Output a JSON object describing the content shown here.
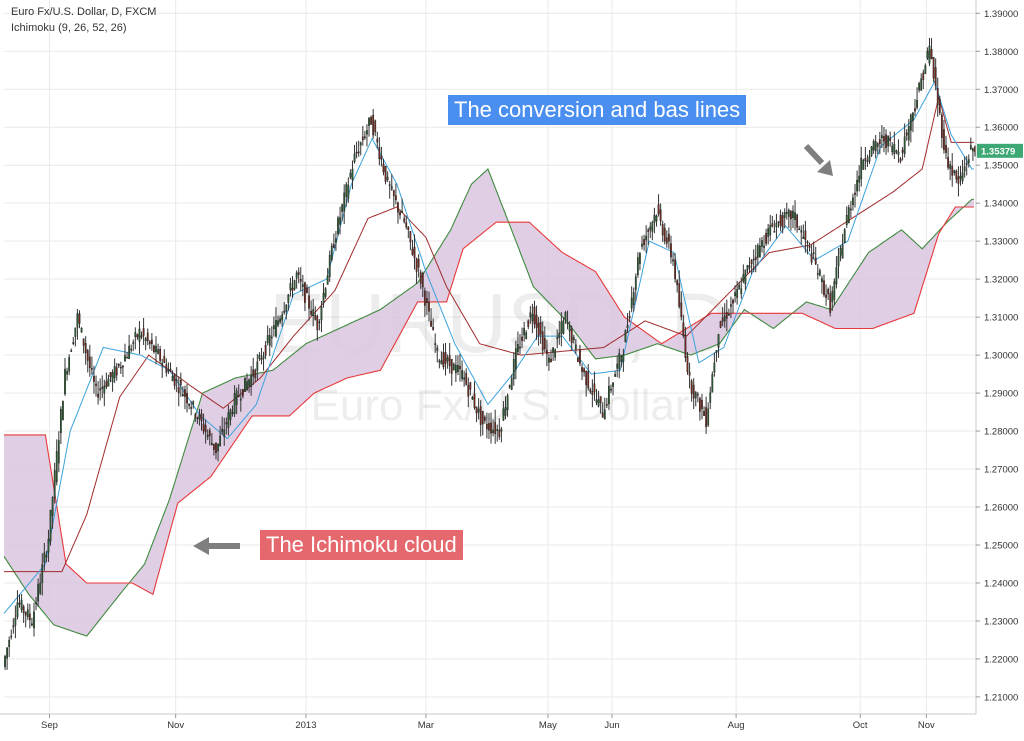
{
  "header": {
    "symbol_line": "Euro Fx/U.S. Dollar, D, FXCM",
    "indicator_line": "Ichimoku (9, 26, 52, 26)"
  },
  "watermark": {
    "ticker": "EURUSD, D",
    "name": "Euro Fx/U.S. Dollar"
  },
  "annotations": {
    "conversion": "The conversion and bas lines",
    "cloud": "The Ichimoku cloud"
  },
  "colors": {
    "conversion_bg": "#4a8ff0",
    "cloud_label_bg": "#e5686e",
    "arrow": "#7f7f7f",
    "cloud_fill": "#d9c5df",
    "span_a": "#3f8b3f",
    "span_b": "#e8393b",
    "tenkan": "#3ba2dc",
    "kijun": "#a12b2b",
    "candle_up": "#2d6a34",
    "candle_down": "#8a2a1e",
    "price_badge": "#3da873"
  },
  "chart_data": {
    "type": "candlestick",
    "title": "Euro Fx/U.S. Dollar, D, FXCM",
    "indicator": "Ichimoku (9, 26, 52, 26)",
    "x_tick_labels": [
      "Sep",
      "Nov",
      "2013",
      "Mar",
      "May",
      "Jun",
      "Aug",
      "Oct",
      "Nov"
    ],
    "x_tick_days": [
      22,
      83,
      146,
      204,
      263,
      294,
      354,
      414,
      446
    ],
    "y_ticks": [
      1.21,
      1.22,
      1.23,
      1.24,
      1.25,
      1.26,
      1.27,
      1.28,
      1.29,
      1.3,
      1.31,
      1.32,
      1.33,
      1.34,
      1.35,
      1.36,
      1.37,
      1.38,
      1.39
    ],
    "y_tick_labels": [
      "1.21000",
      "1.22000",
      "1.23000",
      "1.24000",
      "1.25000",
      "1.26000",
      "1.27000",
      "1.28000",
      "1.29000",
      "1.30000",
      "1.31000",
      "1.32000",
      "1.33000",
      "1.34000",
      "1.35000",
      "1.36000",
      "1.37000",
      "1.38000",
      "1.39000"
    ],
    "ylim": [
      1.2055,
      1.3935
    ],
    "xlim": [
      0,
      470
    ],
    "last_price": 1.35379,
    "last_price_label": "1.35379",
    "price_anchors": [
      [
        0,
        1.218
      ],
      [
        7,
        1.235
      ],
      [
        14,
        1.23
      ],
      [
        22,
        1.252
      ],
      [
        30,
        1.295
      ],
      [
        36,
        1.31
      ],
      [
        45,
        1.29
      ],
      [
        55,
        1.296
      ],
      [
        66,
        1.306
      ],
      [
        75,
        1.3
      ],
      [
        90,
        1.288
      ],
      [
        103,
        1.275
      ],
      [
        112,
        1.288
      ],
      [
        122,
        1.296
      ],
      [
        132,
        1.308
      ],
      [
        142,
        1.321
      ],
      [
        152,
        1.308
      ],
      [
        160,
        1.33
      ],
      [
        170,
        1.352
      ],
      [
        178,
        1.362
      ],
      [
        186,
        1.345
      ],
      [
        194,
        1.335
      ],
      [
        202,
        1.32
      ],
      [
        210,
        1.3
      ],
      [
        222,
        1.295
      ],
      [
        232,
        1.282
      ],
      [
        240,
        1.28
      ],
      [
        248,
        1.3
      ],
      [
        256,
        1.312
      ],
      [
        264,
        1.298
      ],
      [
        272,
        1.31
      ],
      [
        280,
        1.296
      ],
      [
        290,
        1.285
      ],
      [
        300,
        1.302
      ],
      [
        308,
        1.328
      ],
      [
        316,
        1.338
      ],
      [
        324,
        1.325
      ],
      [
        332,
        1.293
      ],
      [
        340,
        1.283
      ],
      [
        346,
        1.307
      ],
      [
        354,
        1.315
      ],
      [
        362,
        1.325
      ],
      [
        372,
        1.334
      ],
      [
        382,
        1.337
      ],
      [
        392,
        1.325
      ],
      [
        400,
        1.313
      ],
      [
        408,
        1.336
      ],
      [
        416,
        1.352
      ],
      [
        426,
        1.357
      ],
      [
        434,
        1.353
      ],
      [
        442,
        1.368
      ],
      [
        448,
        1.381
      ],
      [
        456,
        1.352
      ],
      [
        462,
        1.345
      ],
      [
        468,
        1.354
      ]
    ],
    "tenkan_anchors": [
      [
        0,
        1.232
      ],
      [
        20,
        1.245
      ],
      [
        32,
        1.28
      ],
      [
        48,
        1.302
      ],
      [
        66,
        1.3
      ],
      [
        80,
        1.296
      ],
      [
        95,
        1.284
      ],
      [
        108,
        1.278
      ],
      [
        122,
        1.287
      ],
      [
        140,
        1.316
      ],
      [
        156,
        1.32
      ],
      [
        168,
        1.345
      ],
      [
        178,
        1.357
      ],
      [
        190,
        1.345
      ],
      [
        204,
        1.322
      ],
      [
        218,
        1.303
      ],
      [
        234,
        1.287
      ],
      [
        246,
        1.295
      ],
      [
        258,
        1.305
      ],
      [
        270,
        1.305
      ],
      [
        284,
        1.295
      ],
      [
        298,
        1.296
      ],
      [
        312,
        1.33
      ],
      [
        324,
        1.327
      ],
      [
        336,
        1.298
      ],
      [
        348,
        1.302
      ],
      [
        362,
        1.322
      ],
      [
        378,
        1.334
      ],
      [
        392,
        1.325
      ],
      [
        408,
        1.33
      ],
      [
        424,
        1.355
      ],
      [
        440,
        1.362
      ],
      [
        450,
        1.372
      ],
      [
        458,
        1.358
      ],
      [
        468,
        1.349
      ]
    ],
    "kijun_anchors": [
      [
        0,
        1.243
      ],
      [
        28,
        1.243
      ],
      [
        40,
        1.258
      ],
      [
        56,
        1.289
      ],
      [
        70,
        1.3
      ],
      [
        90,
        1.292
      ],
      [
        106,
        1.286
      ],
      [
        124,
        1.294
      ],
      [
        140,
        1.305
      ],
      [
        160,
        1.317
      ],
      [
        176,
        1.336
      ],
      [
        190,
        1.339
      ],
      [
        204,
        1.331
      ],
      [
        214,
        1.318
      ],
      [
        230,
        1.303
      ],
      [
        250,
        1.3
      ],
      [
        270,
        1.301
      ],
      [
        290,
        1.302
      ],
      [
        310,
        1.309
      ],
      [
        330,
        1.305
      ],
      [
        350,
        1.316
      ],
      [
        370,
        1.327
      ],
      [
        390,
        1.329
      ],
      [
        410,
        1.336
      ],
      [
        430,
        1.343
      ],
      [
        444,
        1.349
      ],
      [
        452,
        1.368
      ],
      [
        458,
        1.356
      ],
      [
        468,
        1.356
      ]
    ],
    "span_a_anchors": [
      [
        0,
        1.247
      ],
      [
        12,
        1.237
      ],
      [
        24,
        1.229
      ],
      [
        40,
        1.226
      ],
      [
        56,
        1.237
      ],
      [
        68,
        1.245
      ],
      [
        80,
        1.262
      ],
      [
        96,
        1.29
      ],
      [
        112,
        1.294
      ],
      [
        130,
        1.296
      ],
      [
        146,
        1.303
      ],
      [
        162,
        1.307
      ],
      [
        182,
        1.312
      ],
      [
        200,
        1.319
      ],
      [
        216,
        1.333
      ],
      [
        226,
        1.345
      ],
      [
        234,
        1.349
      ],
      [
        244,
        1.335
      ],
      [
        256,
        1.318
      ],
      [
        272,
        1.309
      ],
      [
        286,
        1.299
      ],
      [
        300,
        1.3
      ],
      [
        316,
        1.303
      ],
      [
        332,
        1.3
      ],
      [
        346,
        1.303
      ],
      [
        358,
        1.312
      ],
      [
        372,
        1.307
      ],
      [
        388,
        1.314
      ],
      [
        400,
        1.312
      ],
      [
        418,
        1.327
      ],
      [
        434,
        1.333
      ],
      [
        444,
        1.328
      ],
      [
        456,
        1.335
      ],
      [
        468,
        1.341
      ]
    ],
    "span_b_anchors": [
      [
        0,
        1.279
      ],
      [
        20,
        1.279
      ],
      [
        30,
        1.245
      ],
      [
        40,
        1.24
      ],
      [
        62,
        1.24
      ],
      [
        72,
        1.237
      ],
      [
        84,
        1.261
      ],
      [
        100,
        1.268
      ],
      [
        120,
        1.284
      ],
      [
        138,
        1.284
      ],
      [
        150,
        1.29
      ],
      [
        166,
        1.294
      ],
      [
        182,
        1.296
      ],
      [
        200,
        1.314
      ],
      [
        214,
        1.314
      ],
      [
        222,
        1.328
      ],
      [
        238,
        1.335
      ],
      [
        254,
        1.335
      ],
      [
        270,
        1.327
      ],
      [
        286,
        1.322
      ],
      [
        300,
        1.31
      ],
      [
        318,
        1.303
      ],
      [
        342,
        1.311
      ],
      [
        372,
        1.311
      ],
      [
        386,
        1.311
      ],
      [
        402,
        1.307
      ],
      [
        420,
        1.307
      ],
      [
        440,
        1.311
      ],
      [
        452,
        1.332
      ],
      [
        460,
        1.339
      ],
      [
        468,
        1.339
      ]
    ]
  }
}
